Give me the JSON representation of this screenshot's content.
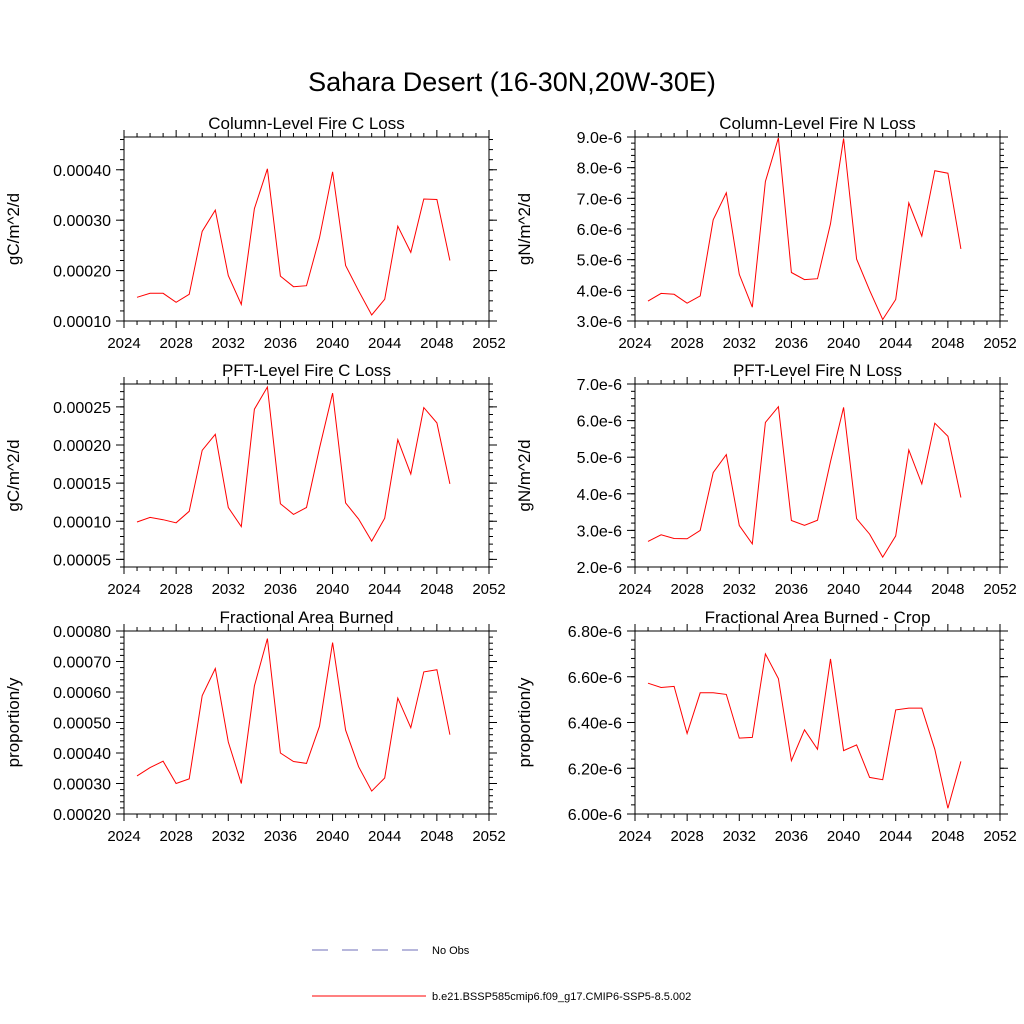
{
  "page_title": "Sahara Desert (16-30N,20W-30E)",
  "colors": {
    "series": "#ff0000",
    "obs": "#6f6fb8",
    "axis": "#000000"
  },
  "legend": {
    "items": [
      {
        "label": "No Obs",
        "style": "dashed",
        "color": "#6f6fb8"
      },
      {
        "label": "b.e21.BSSP585cmip6.f09_g17.CMIP6-SSP5-8.5.002",
        "style": "solid",
        "color": "#ff0000"
      }
    ]
  },
  "chart_data": [
    {
      "type": "line",
      "title": "Column-Level Fire C Loss",
      "ylabel": "gC/m^2/d",
      "xlim": [
        2024,
        2052
      ],
      "x_ticks": [
        "2024",
        "2028",
        "2032",
        "2036",
        "2040",
        "2044",
        "2048",
        "2052"
      ],
      "ylim": [
        0.0001,
        0.000465
      ],
      "y_ticks": [
        {
          "value": 0.0001,
          "label": "0.00010"
        },
        {
          "value": 0.0002,
          "label": "0.00020"
        },
        {
          "value": 0.0003,
          "label": "0.00030"
        },
        {
          "value": 0.0004,
          "label": "0.00040"
        }
      ],
      "y_minor_step": 2e-05,
      "series": [
        {
          "x": [
            2025,
            2026,
            2027,
            2028,
            2029,
            2030,
            2031,
            2032,
            2033,
            2034,
            2035,
            2036,
            2037,
            2038,
            2039,
            2040,
            2041,
            2042,
            2043,
            2044,
            2045,
            2046,
            2047,
            2048,
            2049
          ],
          "y": [
            0.000147,
            0.000155,
            0.000155,
            0.000137,
            0.000153,
            0.000278,
            0.00032,
            0.00019,
            0.000133,
            0.000323,
            0.000402,
            0.000189,
            0.000168,
            0.00017,
            0.000265,
            0.000396,
            0.00021,
            0.00016,
            0.000112,
            0.000143,
            0.000288,
            0.000236,
            0.000342,
            0.000341,
            0.00022
          ]
        }
      ]
    },
    {
      "type": "line",
      "title": "Column-Level Fire N Loss",
      "ylabel": "gN/m^2/d",
      "xlim": [
        2024,
        2052
      ],
      "x_ticks": [
        "2024",
        "2028",
        "2032",
        "2036",
        "2040",
        "2044",
        "2048",
        "2052"
      ],
      "ylim": [
        3e-06,
        9e-06
      ],
      "y_ticks": [
        {
          "value": 3e-06,
          "label": "3.0e-6"
        },
        {
          "value": 4e-06,
          "label": "4.0e-6"
        },
        {
          "value": 5e-06,
          "label": "5.0e-6"
        },
        {
          "value": 6e-06,
          "label": "6.0e-6"
        },
        {
          "value": 7e-06,
          "label": "7.0e-6"
        },
        {
          "value": 8e-06,
          "label": "8.0e-6"
        },
        {
          "value": 9e-06,
          "label": "9.0e-6"
        }
      ],
      "y_minor_step": 2e-07,
      "series": [
        {
          "x": [
            2025,
            2026,
            2027,
            2028,
            2029,
            2030,
            2031,
            2032,
            2033,
            2034,
            2035,
            2036,
            2037,
            2038,
            2039,
            2040,
            2041,
            2042,
            2043,
            2044,
            2045,
            2046,
            2047,
            2048,
            2049
          ],
          "y": [
            3.65e-06,
            3.9e-06,
            3.87e-06,
            3.58e-06,
            3.82e-06,
            6.3e-06,
            7.18e-06,
            4.52e-06,
            3.45e-06,
            7.55e-06,
            8.97e-06,
            4.58e-06,
            4.35e-06,
            4.38e-06,
            6.17e-06,
            8.95e-06,
            5.02e-06,
            4e-06,
            3.05e-06,
            3.7e-06,
            6.85e-06,
            5.77e-06,
            7.9e-06,
            7.82e-06,
            5.35e-06
          ]
        }
      ]
    },
    {
      "type": "line",
      "title": "PFT-Level Fire C Loss",
      "ylabel": "gC/m^2/d",
      "xlim": [
        2024,
        2052
      ],
      "x_ticks": [
        "2024",
        "2028",
        "2032",
        "2036",
        "2040",
        "2044",
        "2048",
        "2052"
      ],
      "ylim": [
        4e-05,
        0.00028
      ],
      "y_ticks": [
        {
          "value": 5e-05,
          "label": "0.00005"
        },
        {
          "value": 0.0001,
          "label": "0.00010"
        },
        {
          "value": 0.00015,
          "label": "0.00015"
        },
        {
          "value": 0.0002,
          "label": "0.00020"
        },
        {
          "value": 0.00025,
          "label": "0.00025"
        }
      ],
      "y_minor_step": 1e-05,
      "series": [
        {
          "x": [
            2025,
            2026,
            2027,
            2028,
            2029,
            2030,
            2031,
            2032,
            2033,
            2034,
            2035,
            2036,
            2037,
            2038,
            2039,
            2040,
            2041,
            2042,
            2043,
            2044,
            2045,
            2046,
            2047,
            2048,
            2049
          ],
          "y": [
            9.9e-05,
            0.000105,
            0.000102,
            9.8e-05,
            0.000113,
            0.000193,
            0.000214,
            0.000118,
            9.3e-05,
            0.000247,
            0.000276,
            0.000123,
            0.000109,
            0.000118,
            0.000196,
            0.000268,
            0.000124,
            0.000103,
            7.4e-05,
            0.000104,
            0.000207,
            0.000162,
            0.000249,
            0.000229,
            0.000149
          ]
        }
      ]
    },
    {
      "type": "line",
      "title": "PFT-Level Fire N Loss",
      "ylabel": "gN/m^2/d",
      "xlim": [
        2024,
        2052
      ],
      "x_ticks": [
        "2024",
        "2028",
        "2032",
        "2036",
        "2040",
        "2044",
        "2048",
        "2052"
      ],
      "ylim": [
        2e-06,
        7e-06
      ],
      "y_ticks": [
        {
          "value": 2e-06,
          "label": "2.0e-6"
        },
        {
          "value": 3e-06,
          "label": "3.0e-6"
        },
        {
          "value": 4e-06,
          "label": "4.0e-6"
        },
        {
          "value": 5e-06,
          "label": "5.0e-6"
        },
        {
          "value": 6e-06,
          "label": "6.0e-6"
        },
        {
          "value": 7e-06,
          "label": "7.0e-6"
        }
      ],
      "y_minor_step": 2e-07,
      "series": [
        {
          "x": [
            2025,
            2026,
            2027,
            2028,
            2029,
            2030,
            2031,
            2032,
            2033,
            2034,
            2035,
            2036,
            2037,
            2038,
            2039,
            2040,
            2041,
            2042,
            2043,
            2044,
            2045,
            2046,
            2047,
            2048,
            2049
          ],
          "y": [
            2.7e-06,
            2.88e-06,
            2.78e-06,
            2.77e-06,
            3e-06,
            4.58e-06,
            5.07e-06,
            3.13e-06,
            2.63e-06,
            5.95e-06,
            6.38e-06,
            3.27e-06,
            3.14e-06,
            3.28e-06,
            4.88e-06,
            6.36e-06,
            3.32e-06,
            2.9e-06,
            2.27e-06,
            2.85e-06,
            5.2e-06,
            4.27e-06,
            5.93e-06,
            5.57e-06,
            3.9e-06
          ]
        }
      ]
    },
    {
      "type": "line",
      "title": "Fractional Area Burned",
      "ylabel": "proportion/y",
      "xlim": [
        2024,
        2052
      ],
      "x_ticks": [
        "2024",
        "2028",
        "2032",
        "2036",
        "2040",
        "2044",
        "2048",
        "2052"
      ],
      "ylim": [
        0.0002,
        0.0008
      ],
      "y_ticks": [
        {
          "value": 0.0002,
          "label": "0.00020"
        },
        {
          "value": 0.0003,
          "label": "0.00030"
        },
        {
          "value": 0.0004,
          "label": "0.00040"
        },
        {
          "value": 0.0005,
          "label": "0.00050"
        },
        {
          "value": 0.0006,
          "label": "0.00060"
        },
        {
          "value": 0.0007,
          "label": "0.00070"
        },
        {
          "value": 0.0008,
          "label": "0.00080"
        }
      ],
      "y_minor_step": 2e-05,
      "series": [
        {
          "x": [
            2025,
            2026,
            2027,
            2028,
            2029,
            2030,
            2031,
            2032,
            2033,
            2034,
            2035,
            2036,
            2037,
            2038,
            2039,
            2040,
            2041,
            2042,
            2043,
            2044,
            2045,
            2046,
            2047,
            2048,
            2049
          ],
          "y": [
            0.000325,
            0.000352,
            0.000373,
            0.0003,
            0.000315,
            0.000588,
            0.000677,
            0.000436,
            0.0003,
            0.00062,
            0.000775,
            0.0004,
            0.000372,
            0.000366,
            0.000488,
            0.000762,
            0.000475,
            0.000355,
            0.000275,
            0.000318,
            0.00058,
            0.000483,
            0.000666,
            0.000673,
            0.00046
          ]
        }
      ]
    },
    {
      "type": "line",
      "title": "Fractional Area Burned - Crop",
      "ylabel": "proportion/y",
      "xlim": [
        2024,
        2052
      ],
      "x_ticks": [
        "2024",
        "2028",
        "2032",
        "2036",
        "2040",
        "2044",
        "2048",
        "2052"
      ],
      "ylim": [
        6e-06,
        6.8e-06
      ],
      "y_ticks": [
        {
          "value": 6e-06,
          "label": "6.00e-6"
        },
        {
          "value": 6.2e-06,
          "label": "6.20e-6"
        },
        {
          "value": 6.4e-06,
          "label": "6.40e-6"
        },
        {
          "value": 6.6e-06,
          "label": "6.60e-6"
        },
        {
          "value": 6.8e-06,
          "label": "6.80e-6"
        }
      ],
      "y_minor_step": 4e-08,
      "series": [
        {
          "x": [
            2025,
            2026,
            2027,
            2028,
            2029,
            2030,
            2031,
            2032,
            2033,
            2034,
            2035,
            2036,
            2037,
            2038,
            2039,
            2040,
            2041,
            2042,
            2043,
            2044,
            2045,
            2046,
            2047,
            2048,
            2049
          ],
          "y": [
            6.572e-06,
            6.553e-06,
            6.558e-06,
            6.352e-06,
            6.53e-06,
            6.53e-06,
            6.523e-06,
            6.332e-06,
            6.335e-06,
            6.7e-06,
            6.592e-06,
            6.233e-06,
            6.368e-06,
            6.283e-06,
            6.678e-06,
            6.277e-06,
            6.302e-06,
            6.16e-06,
            6.15e-06,
            6.455e-06,
            6.463e-06,
            6.463e-06,
            6.283e-06,
            6.025e-06,
            6.23e-06
          ]
        }
      ]
    }
  ]
}
